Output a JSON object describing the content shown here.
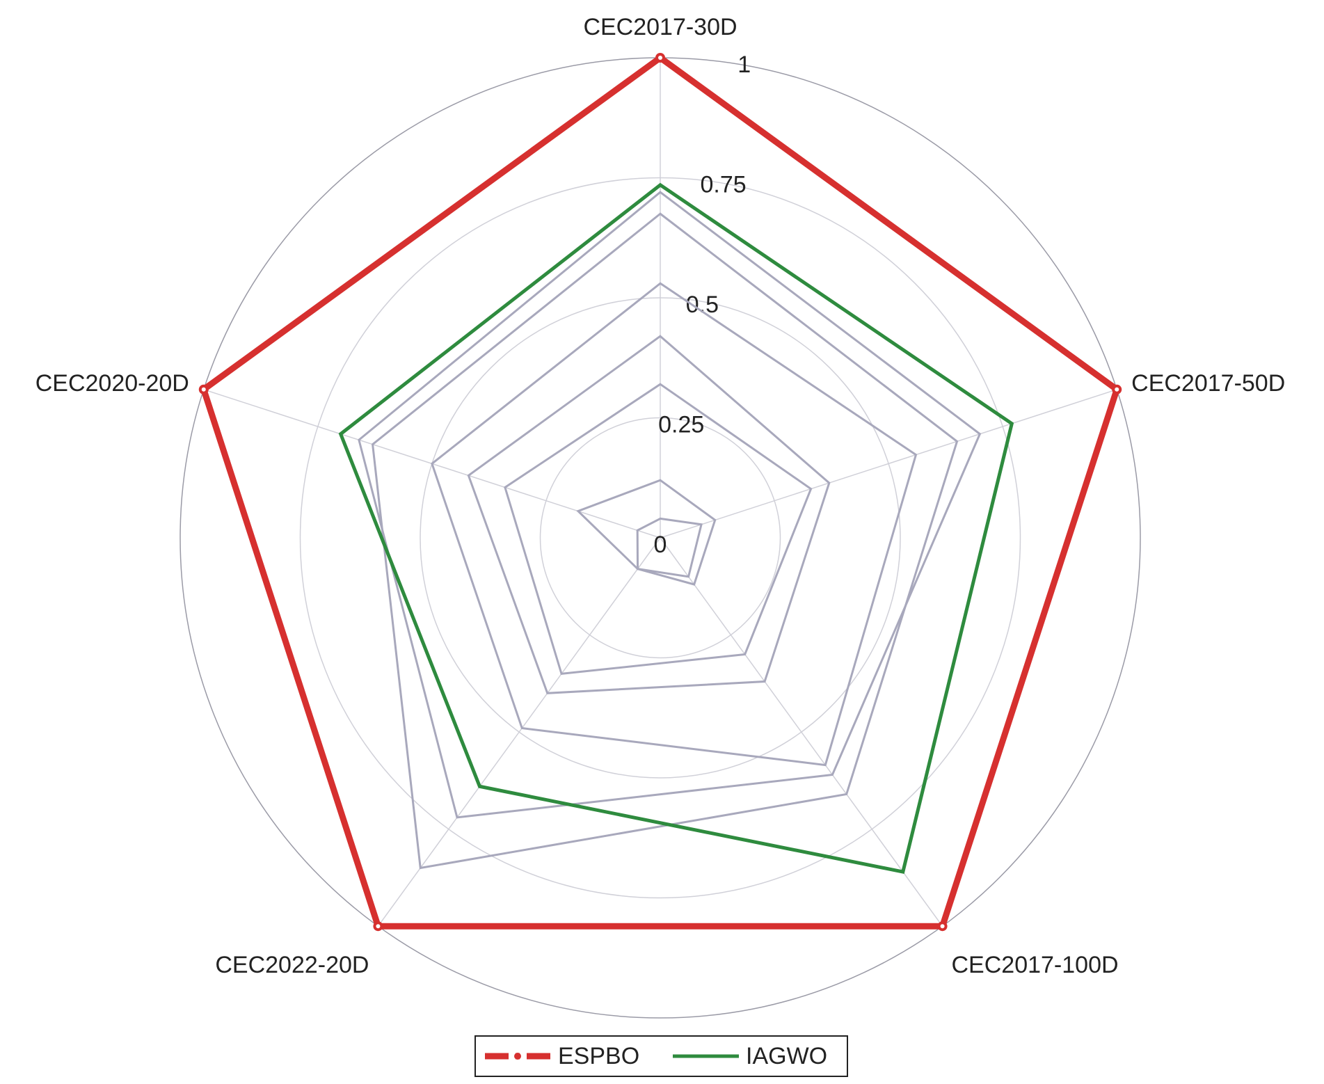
{
  "chart_data": {
    "type": "radar",
    "categories": [
      "CEC2017-30D",
      "CEC2017-50D",
      "CEC2017-100D",
      "CEC2022-20D",
      "CEC2020-20D"
    ],
    "rlim": [
      0,
      1
    ],
    "rticks": [
      0,
      0.25,
      0.5,
      0.75,
      1
    ],
    "grid": true,
    "legend": "bottom",
    "series": [
      {
        "color": "#a8a8bc",
        "values": [
          0.04,
          0.09,
          0.1,
          0.08,
          0.05
        ]
      },
      {
        "color": "#a8a8bc",
        "values": [
          0.12,
          0.12,
          0.12,
          0.08,
          0.18
        ]
      },
      {
        "color": "#a8a8bc",
        "values": [
          0.32,
          0.33,
          0.3,
          0.35,
          0.34
        ]
      },
      {
        "color": "#a8a8bc",
        "values": [
          0.42,
          0.37,
          0.37,
          0.4,
          0.42
        ]
      },
      {
        "color": "#a8a8bc",
        "values": [
          0.53,
          0.56,
          0.585,
          0.49,
          0.5
        ]
      },
      {
        "color": "#a8a8bc",
        "values": [
          0.675,
          0.65,
          0.66,
          0.85,
          0.63
        ]
      },
      {
        "color": "#a8a8bc",
        "values": [
          0.72,
          0.7,
          0.61,
          0.72,
          0.66
        ]
      },
      {
        "name": "IAGWO",
        "color": "#2e8b3e",
        "values": [
          0.735,
          0.77,
          0.86,
          0.64,
          0.7
        ]
      },
      {
        "name": "ESPBO",
        "color": "#d6302f",
        "values": [
          1,
          1,
          1,
          1,
          1
        ]
      }
    ]
  }
}
